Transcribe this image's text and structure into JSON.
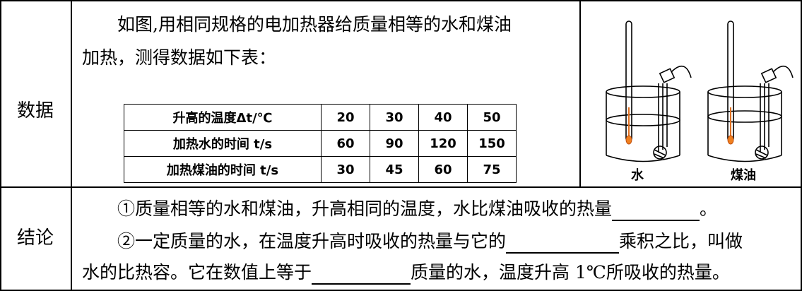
{
  "rows": {
    "data_label": "数据",
    "conclusion_label": "结论"
  },
  "intro": {
    "line1": "如图,用相同规格的电加热器给质量相等的水和煤油",
    "line2": "加热，测得数据如下表："
  },
  "table": {
    "rows": [
      {
        "header": "升高的温度Δt/℃",
        "values": [
          "20",
          "30",
          "40",
          "50"
        ]
      },
      {
        "header": "加热水的时间 t/s",
        "values": [
          "60",
          "90",
          "120",
          "150"
        ]
      },
      {
        "header": "加热煤油的时间 t/s",
        "values": [
          "30",
          "45",
          "60",
          "75"
        ]
      }
    ]
  },
  "figure": {
    "water_label": "水",
    "kerosene_label": "煤油"
  },
  "conclusion": {
    "line1_before": "①质量相等的水和煤油，升高相同的温度，水比煤油吸收的热量",
    "line1_after": "。",
    "line2_before": "②一定质量的水，在温度升高时吸收的热量与它的",
    "line2_after": "乘积之比，叫做",
    "line3_before": "水的比热容。它在数值上等于",
    "line3_after": "质量的水，温度升高 1℃所吸收的热量。"
  }
}
